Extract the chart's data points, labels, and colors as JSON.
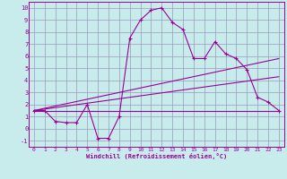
{
  "xlabel": "Windchill (Refroidissement éolien,°C)",
  "bg_color": "#c8ecec",
  "grid_color": "#9999bb",
  "line_color": "#990099",
  "xlim": [
    -0.5,
    23.5
  ],
  "ylim": [
    -1.5,
    10.5
  ],
  "xticks": [
    0,
    1,
    2,
    3,
    4,
    5,
    6,
    7,
    8,
    9,
    10,
    11,
    12,
    13,
    14,
    15,
    16,
    17,
    18,
    19,
    20,
    21,
    22,
    23
  ],
  "yticks": [
    -1,
    0,
    1,
    2,
    3,
    4,
    5,
    6,
    7,
    8,
    9,
    10
  ],
  "line1_x": [
    0,
    1,
    2,
    3,
    4,
    5,
    6,
    7,
    8,
    9,
    10,
    11,
    12,
    13,
    14,
    15,
    16,
    17,
    18,
    19,
    20,
    21,
    22,
    23
  ],
  "line1_y": [
    1.5,
    1.5,
    0.6,
    0.5,
    0.5,
    2.0,
    -0.8,
    -0.8,
    1.0,
    7.5,
    9.0,
    9.8,
    10.0,
    8.8,
    8.2,
    5.8,
    5.8,
    7.2,
    6.2,
    5.8,
    4.9,
    2.6,
    2.2,
    1.5
  ],
  "line2_x": [
    0,
    23
  ],
  "line2_y": [
    1.5,
    5.8
  ],
  "line3_x": [
    0,
    23
  ],
  "line3_y": [
    1.5,
    4.3
  ],
  "line4_x": [
    0,
    23
  ],
  "line4_y": [
    1.5,
    1.5
  ]
}
